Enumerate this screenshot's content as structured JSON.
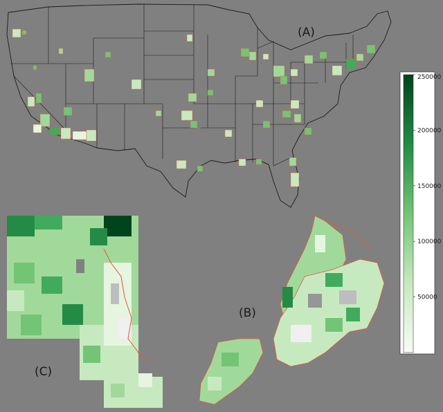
{
  "panels": {
    "A": {
      "label": "(A)"
    },
    "B": {
      "label": "(B)"
    },
    "C": {
      "label": "(C)"
    }
  },
  "colorbar": {
    "min": 0,
    "max": 250000,
    "ticks": [
      "250000",
      "200000",
      "150000",
      "100000",
      "50000"
    ],
    "colors": [
      "#f7fcf5",
      "#c7e9c0",
      "#74c476",
      "#238b45",
      "#00441b"
    ]
  },
  "colors": {
    "background": "#808080",
    "state_border": "#1a1a1a",
    "boundary": "#e8553a"
  }
}
